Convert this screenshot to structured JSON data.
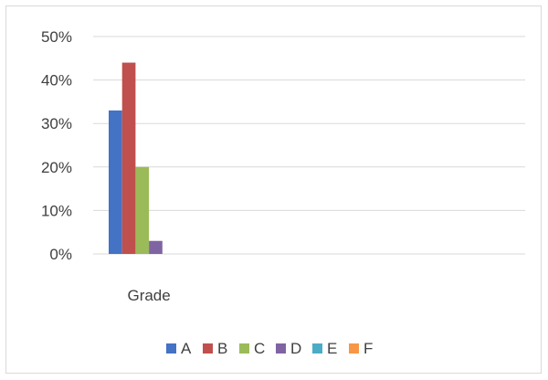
{
  "chart_data": {
    "type": "bar",
    "categories": [
      "Grade"
    ],
    "series": [
      {
        "name": "A",
        "values": [
          0.33
        ],
        "color": "#4472c4"
      },
      {
        "name": "B",
        "values": [
          0.44
        ],
        "color": "#c0504d"
      },
      {
        "name": "C",
        "values": [
          0.2
        ],
        "color": "#9bbb59"
      },
      {
        "name": "D",
        "values": [
          0.03
        ],
        "color": "#8064a2"
      },
      {
        "name": "E",
        "values": [
          0.0
        ],
        "color": "#4bacc6"
      },
      {
        "name": "F",
        "values": [
          0.0
        ],
        "color": "#f79646"
      }
    ],
    "y_ticks": [
      "0%",
      "10%",
      "20%",
      "30%",
      "40%",
      "50%"
    ],
    "ylim": [
      0,
      0.5
    ],
    "y_format": "percent",
    "grid": true,
    "gridline_color": "#d9d9d9",
    "legend": "bottom",
    "title": "",
    "xlabel": "",
    "ylabel": ""
  }
}
